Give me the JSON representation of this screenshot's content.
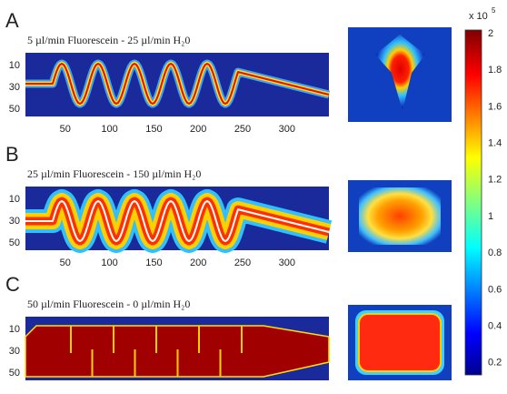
{
  "panels": [
    {
      "letter": "A",
      "title": "5 µl/min Fluorescein - 25 µl/min H₂0",
      "yticks": [
        10,
        30,
        50
      ],
      "xticks": [
        50,
        100,
        150,
        200,
        250,
        300
      ]
    },
    {
      "letter": "B",
      "title": "25 µl/min Fluorescein - 150 µl/min H₂0",
      "yticks": [
        10,
        30,
        50
      ],
      "xticks": [
        50,
        100,
        150,
        200,
        250,
        300
      ]
    },
    {
      "letter": "C",
      "title": "50 µl/min Fluorescein - 0 µl/min H₂0",
      "yticks": [
        10,
        30,
        50
      ]
    }
  ],
  "colorbar": {
    "multiplier": "x 10",
    "exponent": "5",
    "ticks": [
      2,
      1.8,
      1.6,
      1.4,
      1.2,
      1,
      0.8,
      0.6,
      0.4,
      0.2
    ]
  }
}
